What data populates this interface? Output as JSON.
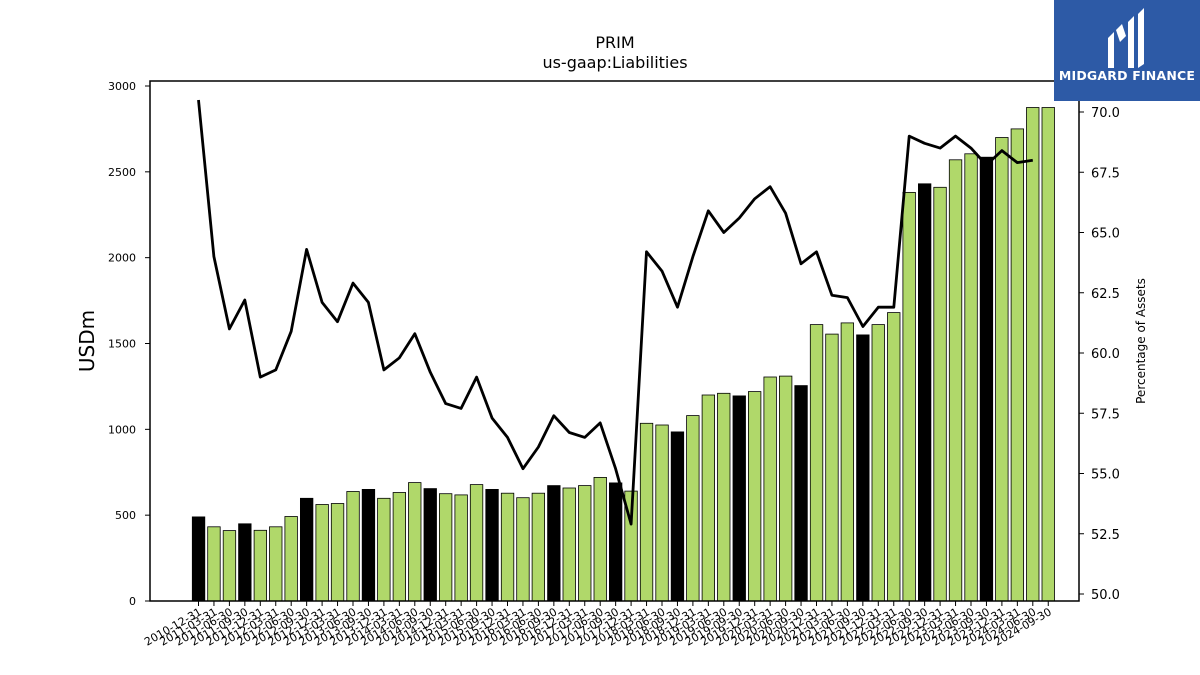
{
  "brand": {
    "name": "MIDGARD FINANCE",
    "background_color": "#2d5aa6",
    "icon": "midgard-logo-icon"
  },
  "chart_data": {
    "type": "bar",
    "title": "PRIM",
    "subtitle": "us-gaap:Liabilities",
    "ylabel": "USDm",
    "y2label": "Percentage of Assets",
    "ylim": [
      0,
      3000
    ],
    "y2lim": [
      50,
      70
    ],
    "yticks": [
      "0",
      "500",
      "1000",
      "1500",
      "2000",
      "2500",
      "3000"
    ],
    "y2ticks": [
      "50.0",
      "52.5",
      "55.0",
      "57.5",
      "60.0",
      "62.5",
      "65.0",
      "67.5",
      "70.0"
    ],
    "grid": false,
    "colors": {
      "quarter_bar": "#b0d86a",
      "annual_bar": "#000000",
      "line": "#000000"
    },
    "categories": [
      "2010-12-31",
      "2011-03-31",
      "2011-06-30",
      "2011-09-30",
      "2011-12-31",
      "2012-03-31",
      "2012-06-30",
      "2012-09-30",
      "2012-12-31",
      "2013-03-31",
      "2013-06-30",
      "2013-09-30",
      "2013-12-31",
      "2014-03-31",
      "2014-06-30",
      "2014-09-30",
      "2014-12-31",
      "2015-03-31",
      "2015-06-30",
      "2015-09-30",
      "2015-12-31",
      "2016-03-31",
      "2016-06-30",
      "2016-09-30",
      "2016-12-31",
      "2017-03-31",
      "2017-06-30",
      "2017-09-30",
      "2017-12-31",
      "2018-03-31",
      "2018-06-30",
      "2018-09-30",
      "2018-12-31",
      "2019-03-31",
      "2019-06-30",
      "2019-09-30",
      "2019-12-31",
      "2020-03-31",
      "2020-06-30",
      "2020-09-30",
      "2020-12-31",
      "2021-03-31",
      "2021-06-30",
      "2021-09-30",
      "2021-12-31",
      "2022-03-31",
      "2022-06-30",
      "2022-09-30",
      "2022-12-31",
      "2023-03-31",
      "2023-06-30",
      "2023-09-30",
      "2023-12-31",
      "2024-03-31",
      "2024-06-30",
      "2024-09-30"
    ],
    "series": [
      {
        "type": "bar",
        "values": [
          490,
          432,
          410,
          450,
          412,
          432,
          492,
          598,
          562,
          568,
          638,
          650,
          598,
          632,
          690,
          655,
          625,
          618,
          678,
          650,
          628,
          602,
          628,
          672,
          658,
          672,
          720,
          688,
          640,
          1035,
          1025,
          985,
          1080,
          1200,
          1210,
          1195,
          1220,
          1305,
          1310,
          1255,
          1610,
          1555,
          1620,
          1550,
          1610,
          1680,
          2380,
          2430,
          2410,
          2570,
          2605,
          2585,
          2700,
          2750,
          2875,
          2875
        ]
      },
      {
        "type": "line",
        "axis": "right",
        "values": [
          70.5,
          64.0,
          61.0,
          62.2,
          59.0,
          59.3,
          60.9,
          64.3,
          62.1,
          61.3,
          62.9,
          62.1,
          59.3,
          59.8,
          60.8,
          59.2,
          57.9,
          57.7,
          59.0,
          57.3,
          56.5,
          55.2,
          56.1,
          57.4,
          56.7,
          56.5,
          57.1,
          55.2,
          52.9,
          64.2,
          63.4,
          61.9,
          64.0,
          65.9,
          65.0,
          65.6,
          66.4,
          66.9,
          65.8,
          63.7,
          64.2,
          62.4,
          62.3,
          61.1,
          61.9,
          61.9,
          69.0,
          68.7,
          68.5,
          69.0,
          68.5,
          67.8,
          68.4,
          67.9,
          68.0,
          null
        ]
      }
    ],
    "annual_bar_indices": [
      0,
      3,
      7,
      11,
      15,
      19,
      23,
      27,
      31,
      35,
      39,
      43,
      47,
      51
    ]
  }
}
